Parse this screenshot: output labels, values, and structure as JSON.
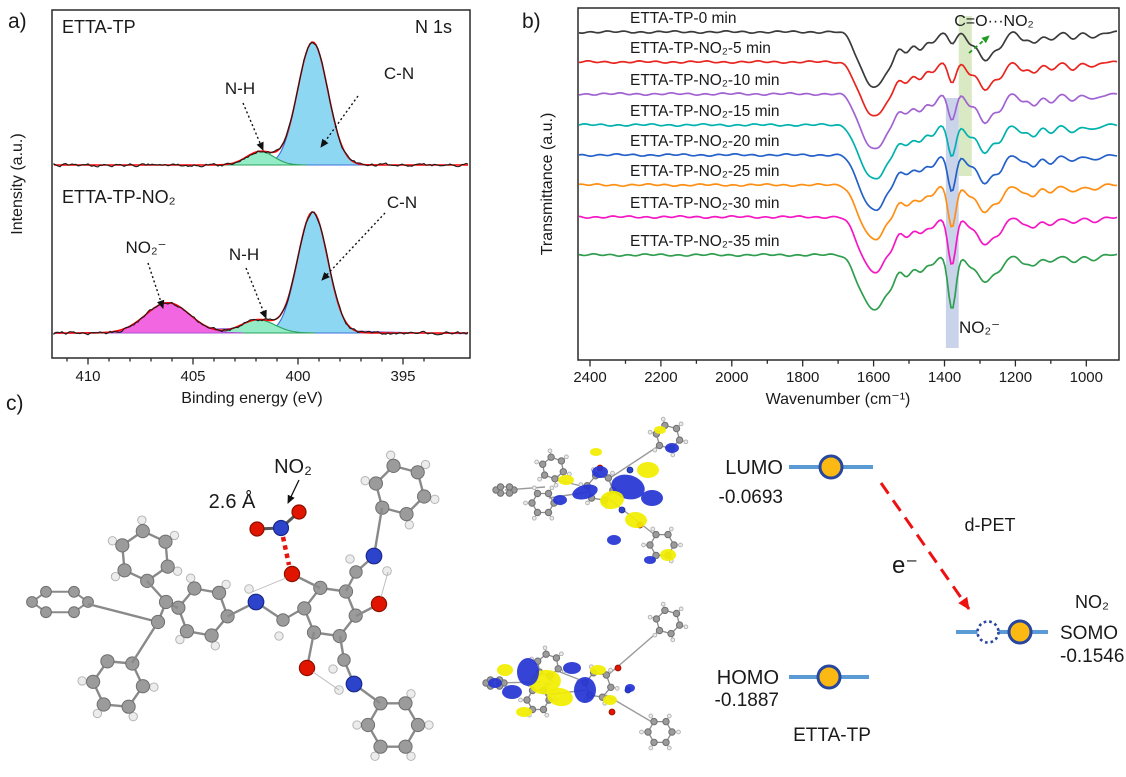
{
  "panels": {
    "a": {
      "tag": "a)",
      "corner_label": "N 1s",
      "ylabel": "Intensity (a.u.)",
      "xlabel": "Binding energy (eV)",
      "spectra": [
        {
          "title": "ETTA-TP",
          "peak_labels": {
            "nh": "N-H",
            "cn": "C-N"
          }
        },
        {
          "title": "ETTA-TP-NO₂",
          "peak_labels": {
            "no2": "NO₂⁻",
            "nh": "N-H",
            "cn": "C-N"
          }
        }
      ]
    },
    "b": {
      "tag": "b)",
      "ylabel": "Transmittance (a.u.)",
      "xlabel": "Wavenumber (cm⁻¹)",
      "annotation_top": "C=O···NO₂",
      "annotation_top_color": "#1f9b1f",
      "annotation_bottom": "NO₂⁻",
      "annotation_bottom_color": "#ee1111"
    },
    "c": {
      "tag": "c)",
      "no2_label": "NO₂",
      "distance_label": "2.6 Å",
      "lumo_label": "LUMO",
      "lumo_value": "-0.0693",
      "homo_label": "HOMO",
      "homo_value": "-0.1887",
      "molecule_label": "ETTA-TP",
      "dpet_label": "d-PET",
      "electron_label": "e⁻",
      "somo_molecule": "NO₂",
      "somo_molecule_color": "#ee1111",
      "somo_label": "SOMO",
      "somo_value": "-0.1546",
      "level_line_color": "#5b9bd5",
      "orbital_fill": "#fdb913",
      "orbital_stroke": "#27479e",
      "arrow_color": "#ee1111"
    }
  },
  "chart_data": [
    {
      "type": "line",
      "panel": "a",
      "title": "N 1s XPS spectra of ETTA-TP before and after NO2 exposure",
      "xlabel": "Binding energy (eV)",
      "ylabel": "Intensity (a.u.)",
      "x_axis_reversed": true,
      "x_range_eV": [
        411.7,
        391.8
      ],
      "x_ticks": [
        410,
        405,
        400,
        395
      ],
      "envelope_color": "#ff0000",
      "data_color": "#1c1c1c",
      "series": [
        {
          "name": "ETTA-TP",
          "peaks": [
            {
              "label": "C-N",
              "center_eV": 399.3,
              "rel_height": 1.0,
              "sigma_eV": 0.72,
              "fill": "#8ed7f3",
              "stroke": "#3a6fd8"
            },
            {
              "label": "N-H",
              "center_eV": 401.8,
              "rel_height": 0.11,
              "sigma_eV": 0.65,
              "fill": "#93ecc5",
              "stroke": "#2aa25e"
            }
          ]
        },
        {
          "name": "ETTA-TP-NO₂",
          "peaks": [
            {
              "label": "C-N",
              "center_eV": 399.3,
              "rel_height": 1.0,
              "sigma_eV": 0.72,
              "fill": "#8ed7f3",
              "stroke": "#3a6fd8"
            },
            {
              "label": "N-H",
              "center_eV": 401.9,
              "rel_height": 0.11,
              "sigma_eV": 0.8,
              "fill": "#93ecc5",
              "stroke": "#2aa25e"
            },
            {
              "label": "NO₂⁻",
              "center_eV": 406.2,
              "rel_height": 0.25,
              "sigma_eV": 1.05,
              "fill": "#f266e2",
              "stroke": "#a94fd6"
            }
          ]
        }
      ]
    },
    {
      "type": "line",
      "panel": "b",
      "title": "Time-dependent FTIR spectra of ETTA-TP exposed to NO2",
      "xlabel": "Wavenumber (cm⁻¹)",
      "ylabel": "Transmittance (a.u.)",
      "x_axis_reversed": true,
      "x_range_cm": [
        2440,
        905
      ],
      "x_ticks": [
        2400,
        2200,
        2000,
        1800,
        1600,
        1400,
        1200,
        1000
      ],
      "no2_band_cm": 1379,
      "common_bands_cm": [
        [
          1648,
          14,
          18
        ],
        [
          1612,
          44,
          22
        ],
        [
          1578,
          34,
          18
        ],
        [
          1548,
          22,
          14
        ],
        [
          1508,
          20,
          16
        ],
        [
          1468,
          16,
          14
        ],
        [
          1434,
          10,
          12
        ],
        [
          1330,
          9,
          12
        ],
        [
          1286,
          28,
          20
        ],
        [
          1244,
          14,
          14
        ],
        [
          1180,
          7,
          12
        ],
        [
          1148,
          11,
          14
        ],
        [
          1100,
          8,
          14
        ],
        [
          1038,
          7,
          14
        ],
        [
          980,
          5,
          16
        ]
      ],
      "series": [
        {
          "name": "ETTA-TP-0 min",
          "color": "#3b3b3b",
          "no2_depth": 12
        },
        {
          "name": "ETTA-TP-NO₂-5 min",
          "color": "#e8251f",
          "no2_depth": 20
        },
        {
          "name": "ETTA-TP-NO₂-10 min",
          "color": "#a163d2",
          "no2_depth": 26
        },
        {
          "name": "ETTA-TP-NO₂-15 min",
          "color": "#00b2ae",
          "no2_depth": 31
        },
        {
          "name": "ETTA-TP-NO₂-20 min",
          "color": "#2360c8",
          "no2_depth": 37
        },
        {
          "name": "ETTA-TP-NO₂-25 min",
          "color": "#ff8f14",
          "no2_depth": 43
        },
        {
          "name": "ETTA-TP-NO₂-30 min",
          "color": "#f517c3",
          "no2_depth": 49
        },
        {
          "name": "ETTA-TP-NO₂-35 min",
          "color": "#2f9e4e",
          "no2_depth": 55
        }
      ],
      "highlight_bands": [
        {
          "note": "C=O region",
          "color": "#cfe3b4",
          "x_cm": [
            1323,
            1360
          ]
        },
        {
          "note": "NO₂⁻ band",
          "color": "#bfcde8",
          "x_cm": [
            1360,
            1396
          ]
        }
      ]
    }
  ],
  "energy_levels": {
    "LUMO": -0.0693,
    "HOMO": -0.1887,
    "SOMO": -0.1546
  }
}
